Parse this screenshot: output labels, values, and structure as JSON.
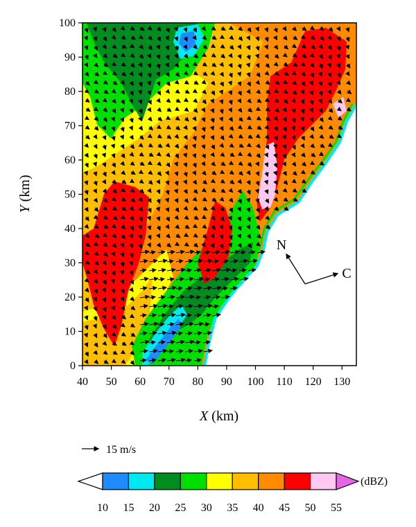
{
  "chart_data": {
    "type": "heatmap",
    "title": "",
    "xlabel": {
      "var": "X",
      "unit": " (km)"
    },
    "ylabel": {
      "var": "Y",
      "unit": " (km)"
    },
    "xlim": [
      40,
      135
    ],
    "ylim": [
      0,
      100
    ],
    "x_ticks": [
      "40",
      "50",
      "60",
      "70",
      "80",
      "90",
      "100",
      "110",
      "120",
      "130"
    ],
    "y_ticks": [
      "0",
      "10",
      "20",
      "30",
      "40",
      "50",
      "60",
      "70",
      "80",
      "90",
      "100"
    ],
    "vector_scale": {
      "label": "15 m/s",
      "speed": 15
    },
    "direction_labels": {
      "north": "N",
      "cell": "C"
    },
    "colorbar": {
      "unit": "(dBZ)",
      "levels": [
        "10",
        "15",
        "20",
        "25",
        "30",
        "35",
        "40",
        "45",
        "50",
        "55"
      ],
      "colors": [
        "#ffffff",
        "#1e8cff",
        "#00e8f0",
        "#008c1e",
        "#00e000",
        "#ffff00",
        "#ffbe00",
        "#ff8c00",
        "#ff0000",
        "#ffc8f0",
        "#e664e6"
      ]
    }
  }
}
